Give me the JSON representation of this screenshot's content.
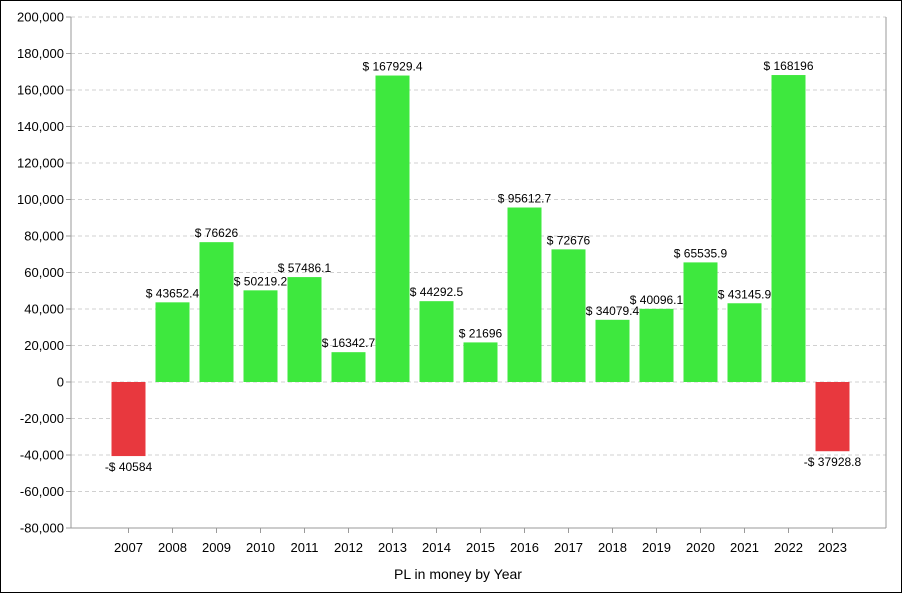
{
  "chart_data": {
    "type": "bar",
    "xlabel": "PL in money by Year",
    "ylabel": "",
    "categories": [
      "2007",
      "2008",
      "2009",
      "2010",
      "2011",
      "2012",
      "2013",
      "2014",
      "2015",
      "2016",
      "2017",
      "2018",
      "2019",
      "2020",
      "2021",
      "2022",
      "2023"
    ],
    "values": [
      -40584,
      43652.4,
      76626,
      50219.2,
      57486.1,
      16342.7,
      167929.4,
      44292.5,
      21696,
      95612.7,
      72676,
      34079.4,
      40096.1,
      65535.9,
      43145.9,
      168196,
      -37928.8
    ],
    "data_labels": [
      "-$ 40584",
      "$ 43652.4",
      "$ 76626",
      "$ 50219.2",
      "$ 57486.1",
      "$ 16342.7",
      "$ 167929.4",
      "$ 44292.5",
      "$ 21696",
      "$ 95612.7",
      "$ 72676",
      "$ 34079.4",
      "$ 40096.1",
      "$ 65535.9",
      "$ 43145.9",
      "$ 168196",
      "-$ 37928.8"
    ],
    "ylim": [
      -80000,
      200000
    ],
    "yticks": [
      -80000,
      -60000,
      -40000,
      -20000,
      0,
      20000,
      40000,
      60000,
      80000,
      100000,
      120000,
      140000,
      160000,
      180000,
      200000
    ],
    "ytick_labels": [
      "-80,000",
      "-60,000",
      "-40,000",
      "-20,000",
      "0",
      "20,000",
      "40,000",
      "60,000",
      "80,000",
      "100,000",
      "120,000",
      "140,000",
      "160,000",
      "180,000",
      "200,000"
    ],
    "grid": true,
    "colors": {
      "positive": "#3ee83e",
      "negative": "#e8383e",
      "grid": "#d0d0d0",
      "axis": "#9a9a9a"
    }
  }
}
